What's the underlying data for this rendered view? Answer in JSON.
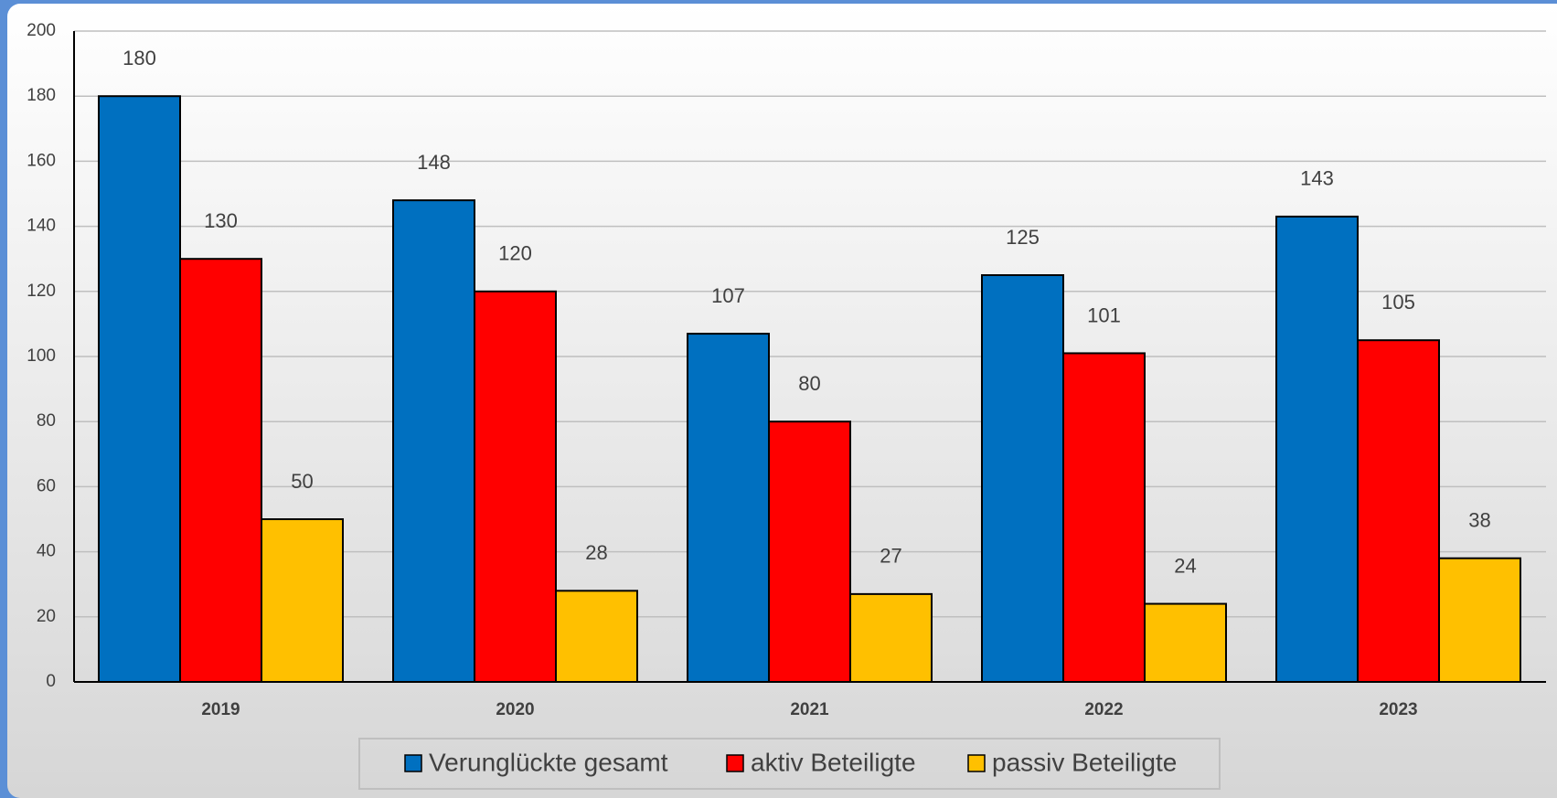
{
  "chart_data": {
    "type": "bar",
    "categories": [
      "2019",
      "2020",
      "2021",
      "2022",
      "2023"
    ],
    "series": [
      {
        "name": "Verunglückte gesamt",
        "color": "#0070c0",
        "values": [
          180,
          148,
          107,
          125,
          143
        ]
      },
      {
        "name": "aktiv Beteiligte",
        "color": "#ff0000",
        "values": [
          130,
          120,
          80,
          101,
          105
        ]
      },
      {
        "name": "passiv Beteiligte",
        "color": "#ffc000",
        "values": [
          50,
          28,
          27,
          24,
          38
        ]
      }
    ],
    "ylim": [
      0,
      200
    ],
    "yticks": [
      0,
      20,
      40,
      60,
      80,
      100,
      120,
      140,
      160,
      180,
      200
    ],
    "grid": true,
    "legend": "bottom"
  }
}
